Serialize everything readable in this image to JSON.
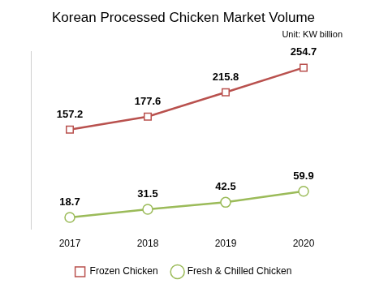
{
  "chart_data": {
    "type": "line",
    "title": "Korean Processed Chicken Market Volume",
    "subtitle": "Unit: KW billion",
    "categories": [
      "2017",
      "2018",
      "2019",
      "2020"
    ],
    "series": [
      {
        "name": "Frozen Chicken",
        "color": "#b9514e",
        "marker": "square",
        "values": [
          157.2,
          177.6,
          215.8,
          254.7
        ]
      },
      {
        "name": "Fresh & Chilled Chicken",
        "color": "#9bbb59",
        "marker": "circle",
        "values": [
          18.7,
          31.5,
          42.5,
          59.9
        ]
      }
    ],
    "ylim": [
      0,
      280
    ],
    "grid": false,
    "legend": "bottom",
    "data_labels": true,
    "tick_labels": "x"
  }
}
